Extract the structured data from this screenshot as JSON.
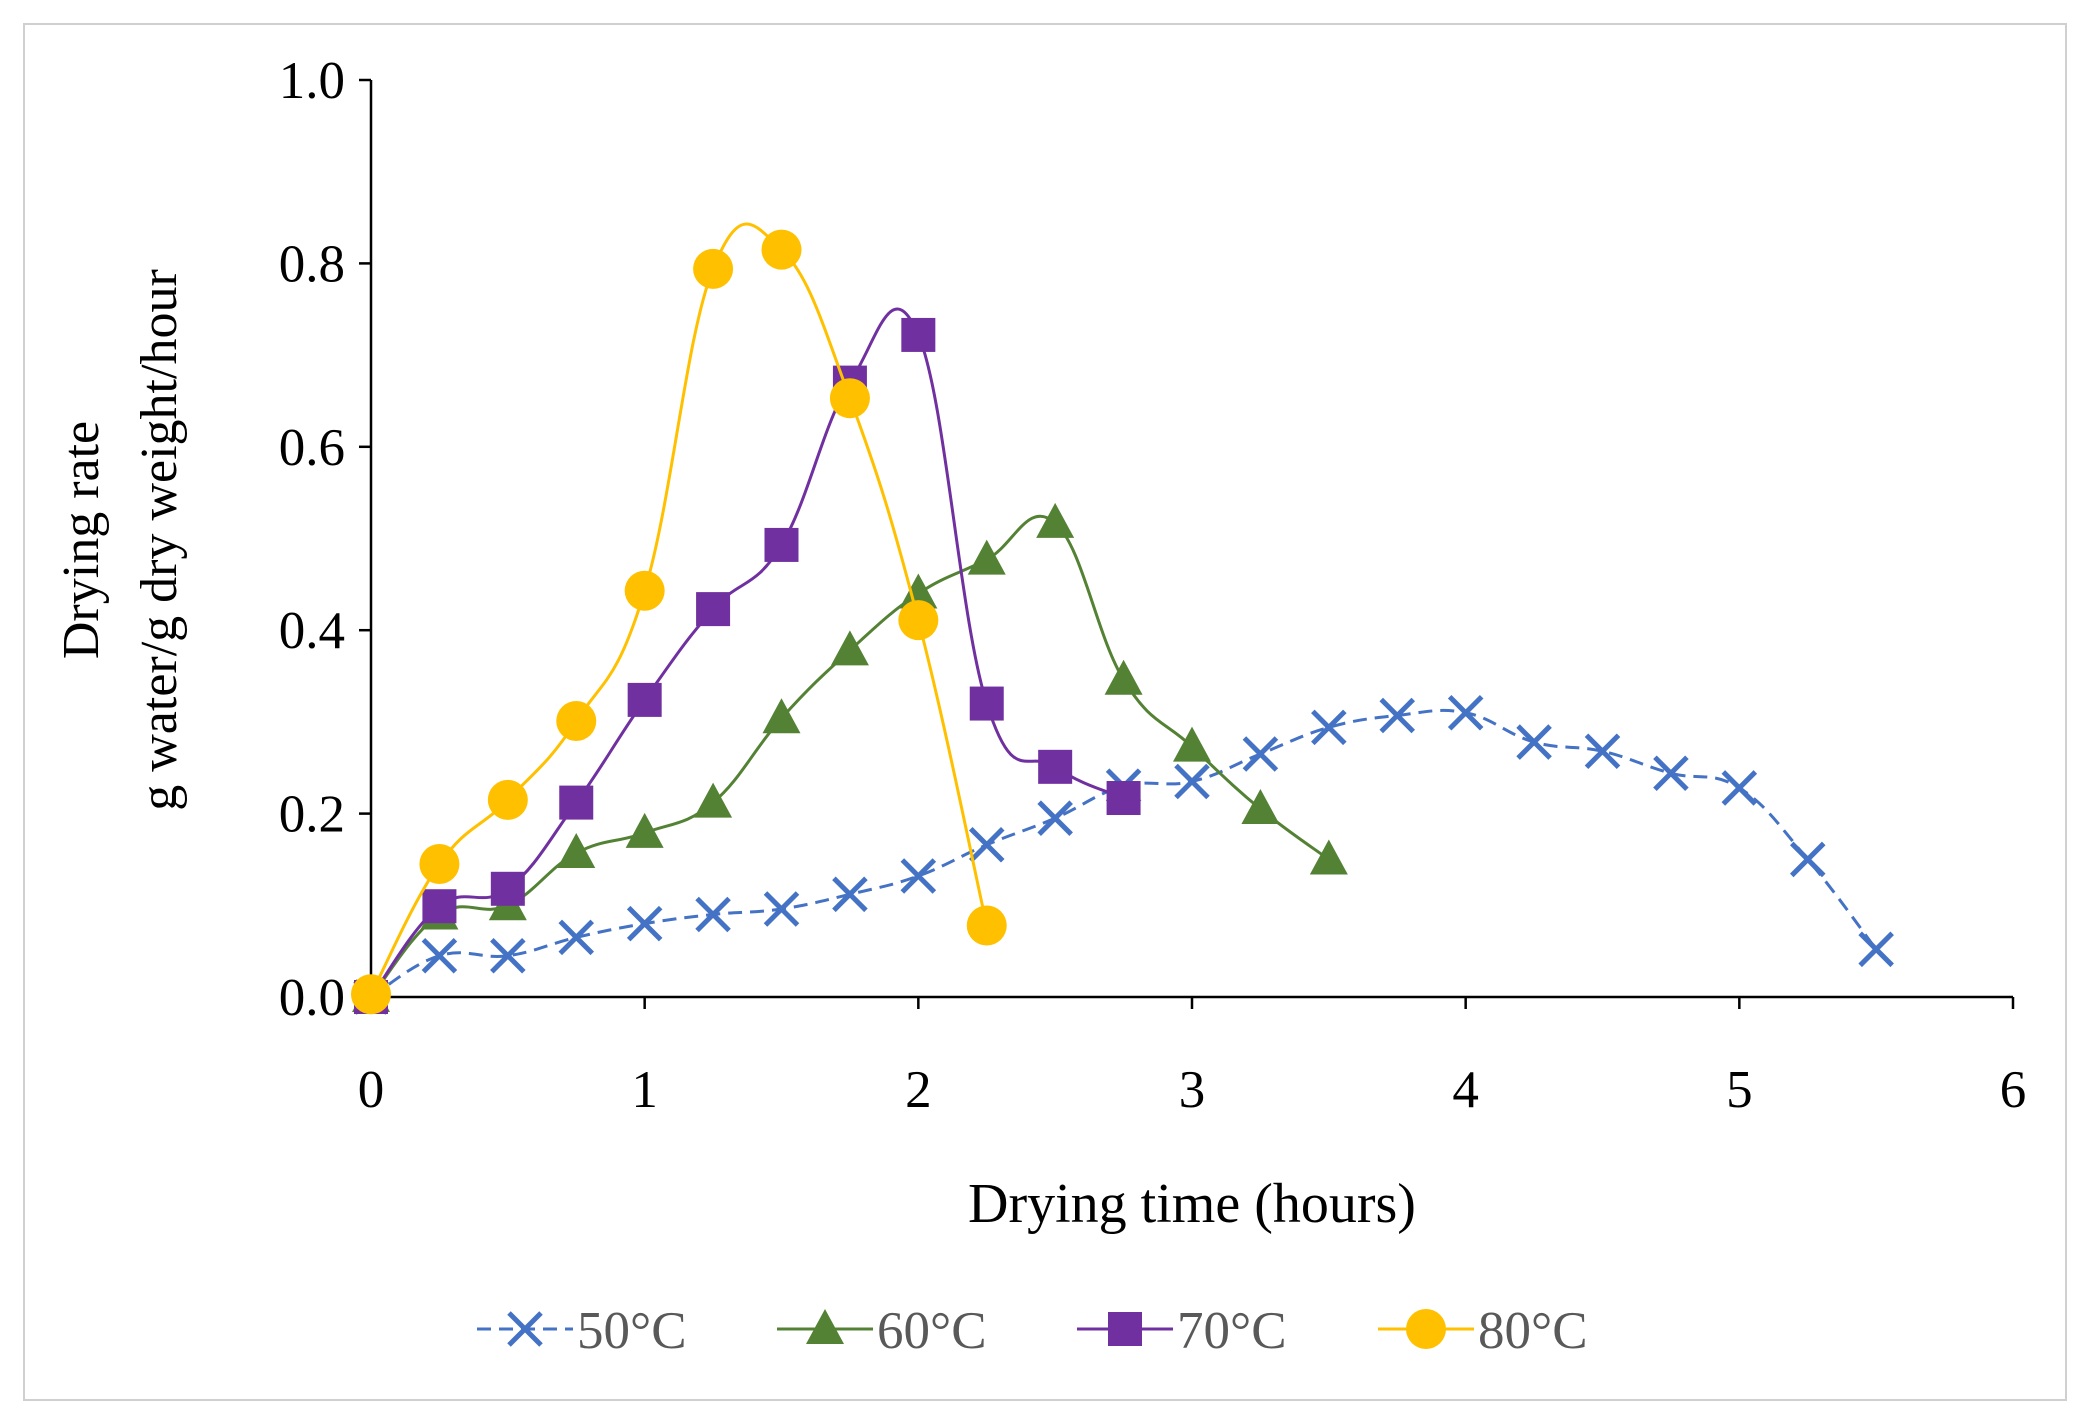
{
  "chart_data": {
    "type": "line",
    "title": "",
    "xlabel": "Drying time (hours)",
    "ylabel_lines": [
      "Drying rate",
      "g water/g dry weight/hour"
    ],
    "xlim": [
      0,
      6
    ],
    "ylim": [
      0,
      1.0
    ],
    "xticks": [
      "0",
      "1",
      "2",
      "3",
      "4",
      "5",
      "6"
    ],
    "yticks": [
      "0.0",
      "0.2",
      "0.4",
      "0.6",
      "0.8",
      "1.0"
    ],
    "grid": false,
    "legend_placement": "bottom",
    "series": [
      {
        "name": "50°C",
        "color": "#4472C4",
        "marker": "x",
        "dashed": true,
        "x": [
          0,
          0.25,
          0.5,
          0.75,
          1,
          1.25,
          1.5,
          1.75,
          2,
          2.25,
          2.5,
          2.75,
          3,
          3.25,
          3.5,
          3.75,
          4,
          4.25,
          4.5,
          4.75,
          5,
          5.25,
          5.5
        ],
        "y": [
          0,
          0.045,
          0.045,
          0.065,
          0.08,
          0.09,
          0.096,
          0.112,
          0.132,
          0.166,
          0.195,
          0.23,
          0.235,
          0.265,
          0.294,
          0.307,
          0.31,
          0.278,
          0.268,
          0.244,
          0.228,
          0.15,
          0.052
        ]
      },
      {
        "name": "60°C",
        "color": "#548235",
        "marker": "triangle",
        "dashed": false,
        "x": [
          0,
          0.25,
          0.5,
          0.75,
          1,
          1.25,
          1.5,
          1.75,
          2,
          2.25,
          2.5,
          2.75,
          3,
          3.25,
          3.5
        ],
        "y": [
          0,
          0.09,
          0.1,
          0.157,
          0.179,
          0.212,
          0.304,
          0.378,
          0.44,
          0.477,
          0.517,
          0.346,
          0.273,
          0.205,
          0.15
        ]
      },
      {
        "name": "70°C",
        "color": "#7030A0",
        "marker": "square",
        "dashed": false,
        "x": [
          0,
          0.25,
          0.5,
          0.75,
          1,
          1.25,
          1.5,
          1.75,
          2,
          2.25,
          2.5,
          2.75
        ],
        "y": [
          0,
          0.099,
          0.118,
          0.212,
          0.324,
          0.423,
          0.493,
          0.67,
          0.722,
          0.32,
          0.251,
          0.217
        ]
      },
      {
        "name": "80°C",
        "color": "#FFC000",
        "marker": "circle",
        "dashed": false,
        "x": [
          0,
          0.25,
          0.5,
          0.75,
          1,
          1.25,
          1.5,
          1.75,
          2,
          2.25
        ],
        "y": [
          0.003,
          0.145,
          0.215,
          0.301,
          0.443,
          0.794,
          0.815,
          0.653,
          0.411,
          0.078
        ]
      }
    ]
  }
}
